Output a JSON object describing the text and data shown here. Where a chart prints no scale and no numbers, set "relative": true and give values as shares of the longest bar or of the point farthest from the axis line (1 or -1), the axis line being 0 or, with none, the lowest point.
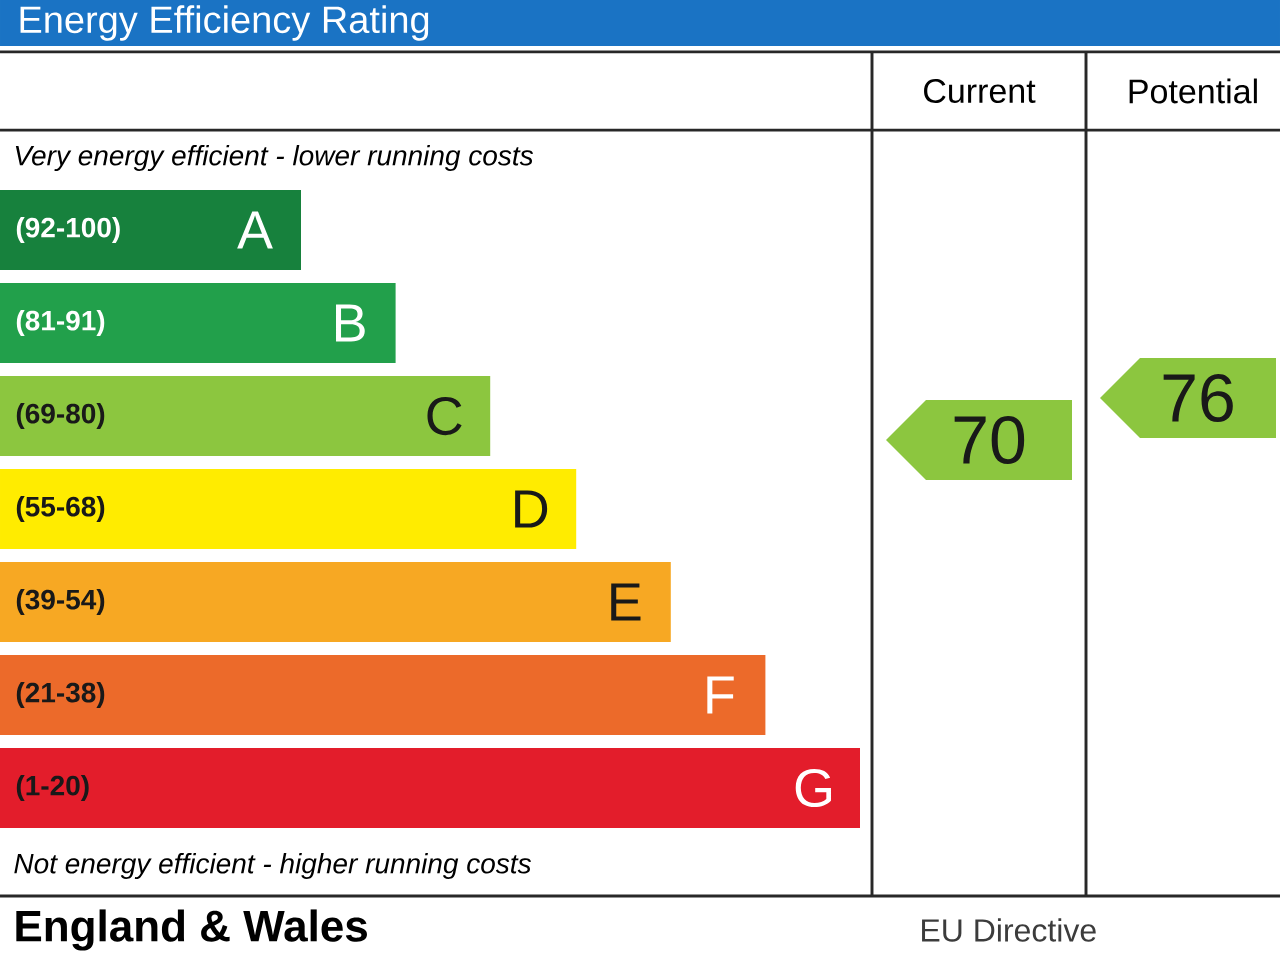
{
  "chart_data": {
    "type": "bar",
    "orientation": "horizontal",
    "relative": true,
    "title": "Energy Efficiency Rating",
    "categories": [
      "A",
      "B",
      "C",
      "D",
      "E",
      "F",
      "G"
    ],
    "values": [
      0.35,
      0.46,
      0.57,
      0.67,
      0.78,
      0.89,
      1
    ],
    "colors": [
      "#17813d",
      "#22a04b",
      "#8cc63f",
      "#ffec00",
      "#f7a823",
      "#ec6a2a",
      "#e31d2b"
    ],
    "annotations": [
      "Current",
      "Potential",
      "Very energy efficient - lower running costs",
      "(92-100)",
      "(81-91)",
      "(69-80)",
      "(55-68)",
      "(39-54)",
      "(21-38)",
      "(1-20)",
      "70",
      "76",
      "Not energy efficient - higher running costs",
      "England & Wales",
      "EU Directive"
    ]
  }
}
